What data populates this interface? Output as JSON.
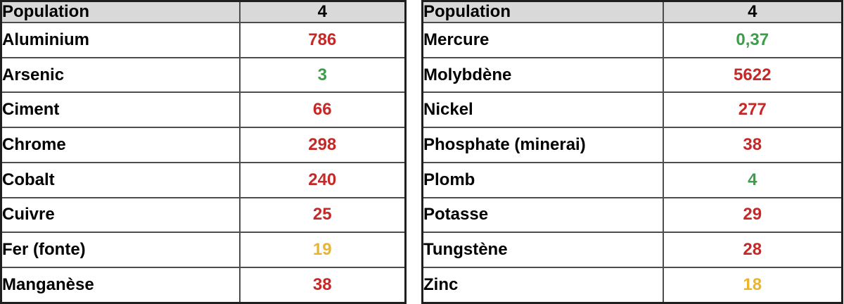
{
  "colors": {
    "red": "#C62828",
    "green": "#3C9E4A",
    "yellow": "#E9B430",
    "header_bg": "#D9D9D9",
    "text": "#000000"
  },
  "chart_data": [
    {
      "type": "table",
      "columns": [
        "Population",
        "4"
      ],
      "header": {
        "label": "Population",
        "value": "4"
      },
      "rows": [
        {
          "label": "Aluminium",
          "value": "786",
          "color": "red"
        },
        {
          "label": "Arsenic",
          "value": "3",
          "color": "green"
        },
        {
          "label": "Ciment",
          "value": "66",
          "color": "red"
        },
        {
          "label": "Chrome",
          "value": "298",
          "color": "red"
        },
        {
          "label": "Cobalt",
          "value": "240",
          "color": "red"
        },
        {
          "label": "Cuivre",
          "value": "25",
          "color": "red"
        },
        {
          "label": "Fer (fonte)",
          "value": "19",
          "color": "yellow"
        },
        {
          "label": "Manganèse",
          "value": "38",
          "color": "red"
        }
      ]
    },
    {
      "type": "table",
      "columns": [
        "Population",
        "4"
      ],
      "header": {
        "label": "Population",
        "value": "4"
      },
      "rows": [
        {
          "label": "Mercure",
          "value": "0,37",
          "color": "green"
        },
        {
          "label": "Molybdène",
          "value": "5622",
          "color": "red"
        },
        {
          "label": "Nickel",
          "value": "277",
          "color": "red"
        },
        {
          "label": "Phosphate (minerai)",
          "value": "38",
          "color": "red"
        },
        {
          "label": "Plomb",
          "value": "4",
          "color": "green"
        },
        {
          "label": "Potasse",
          "value": "29",
          "color": "red"
        },
        {
          "label": "Tungstène",
          "value": "28",
          "color": "red"
        },
        {
          "label": "Zinc",
          "value": "18",
          "color": "yellow"
        }
      ]
    }
  ]
}
